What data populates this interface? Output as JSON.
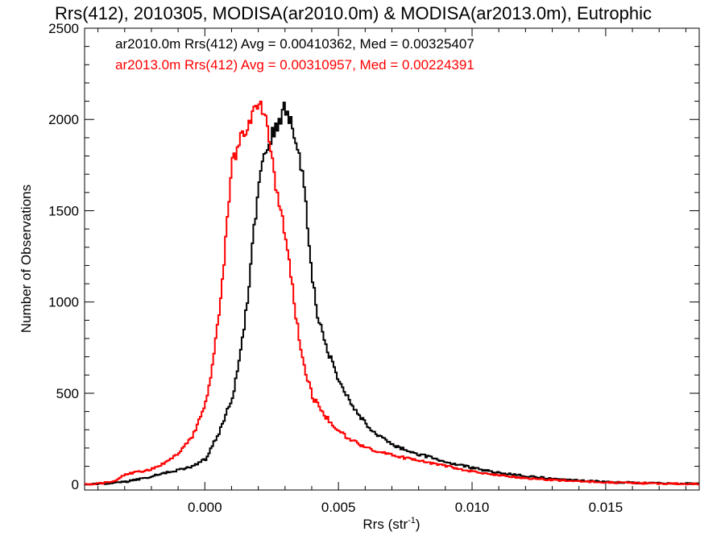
{
  "chart_data": {
    "type": "line",
    "title": "Rrs(412), 2010305, MODISA(ar2010.0m) & MODISA(ar2013.0m), Eutrophic",
    "xlabel": "Rrs (str",
    "xlabel_sup": "-1",
    "xlabel_end": ")",
    "ylabel": "Number of Observations",
    "xlim": [
      -0.0045,
      0.0185
    ],
    "ylim": [
      -30,
      2500
    ],
    "x_ticks": [
      0.0,
      0.005,
      0.01,
      0.015
    ],
    "x_tick_labels": [
      "0.000",
      "0.005",
      "0.010",
      "0.015"
    ],
    "y_ticks": [
      0,
      500,
      1000,
      1500,
      2000,
      2500
    ],
    "y_tick_labels": [
      "0",
      "500",
      "1000",
      "1500",
      "2000",
      "2500"
    ],
    "grid": false,
    "legend_position": "top-left",
    "series": [
      {
        "legend": "ar2010.0m Rrs(412) Avg = 0.00410362, Med = 0.00325407",
        "color": "#000000",
        "points": [
          [
            -0.0045,
            0
          ],
          [
            -0.004,
            3
          ],
          [
            -0.0035,
            8
          ],
          [
            -0.003,
            15
          ],
          [
            -0.0025,
            28
          ],
          [
            -0.002,
            45
          ],
          [
            -0.0015,
            65
          ],
          [
            -0.001,
            80
          ],
          [
            -0.0005,
            100
          ],
          [
            0.0,
            140
          ],
          [
            0.0002,
            200
          ],
          [
            0.0005,
            280
          ],
          [
            0.0008,
            400
          ],
          [
            0.001,
            480
          ],
          [
            0.0012,
            620
          ],
          [
            0.0014,
            820
          ],
          [
            0.0016,
            1050
          ],
          [
            0.0018,
            1400
          ],
          [
            0.002,
            1650
          ],
          [
            0.0022,
            1790
          ],
          [
            0.0024,
            1900
          ],
          [
            0.0026,
            1960
          ],
          [
            0.0028,
            2020
          ],
          [
            0.003,
            2060
          ],
          [
            0.0032,
            2000
          ],
          [
            0.0034,
            1870
          ],
          [
            0.0036,
            1730
          ],
          [
            0.0038,
            1450
          ],
          [
            0.004,
            1130
          ],
          [
            0.0042,
            920
          ],
          [
            0.0045,
            760
          ],
          [
            0.005,
            560
          ],
          [
            0.0055,
            430
          ],
          [
            0.006,
            330
          ],
          [
            0.0065,
            265
          ],
          [
            0.007,
            215
          ],
          [
            0.008,
            165
          ],
          [
            0.009,
            125
          ],
          [
            0.01,
            90
          ],
          [
            0.011,
            65
          ],
          [
            0.012,
            45
          ],
          [
            0.013,
            32
          ],
          [
            0.014,
            22
          ],
          [
            0.015,
            15
          ],
          [
            0.016,
            10
          ],
          [
            0.017,
            7
          ],
          [
            0.0185,
            5
          ]
        ]
      },
      {
        "legend": "ar2013.0m Rrs(412) Avg = 0.00310957, Med = 0.00224391",
        "color": "#ff0000",
        "points": [
          [
            -0.0045,
            0
          ],
          [
            -0.004,
            5
          ],
          [
            -0.0035,
            15
          ],
          [
            -0.003,
            55
          ],
          [
            -0.0025,
            70
          ],
          [
            -0.002,
            85
          ],
          [
            -0.0015,
            120
          ],
          [
            -0.001,
            170
          ],
          [
            -0.0005,
            260
          ],
          [
            0.0,
            450
          ],
          [
            0.0002,
            580
          ],
          [
            0.0004,
            820
          ],
          [
            0.0006,
            1080
          ],
          [
            0.0008,
            1420
          ],
          [
            0.001,
            1760
          ],
          [
            0.0012,
            1860
          ],
          [
            0.0014,
            1900
          ],
          [
            0.0016,
            1970
          ],
          [
            0.0018,
            2040
          ],
          [
            0.002,
            2100
          ],
          [
            0.0022,
            2040
          ],
          [
            0.0024,
            1850
          ],
          [
            0.0026,
            1650
          ],
          [
            0.0028,
            1530
          ],
          [
            0.003,
            1350
          ],
          [
            0.0032,
            1140
          ],
          [
            0.0034,
            900
          ],
          [
            0.0036,
            700
          ],
          [
            0.004,
            480
          ],
          [
            0.0045,
            370
          ],
          [
            0.005,
            290
          ],
          [
            0.0055,
            240
          ],
          [
            0.006,
            200
          ],
          [
            0.007,
            160
          ],
          [
            0.008,
            130
          ],
          [
            0.009,
            100
          ],
          [
            0.01,
            70
          ],
          [
            0.011,
            50
          ],
          [
            0.012,
            35
          ],
          [
            0.013,
            25
          ],
          [
            0.014,
            18
          ],
          [
            0.015,
            12
          ],
          [
            0.016,
            8
          ],
          [
            0.017,
            5
          ],
          [
            0.0185,
            3
          ]
        ]
      }
    ]
  }
}
